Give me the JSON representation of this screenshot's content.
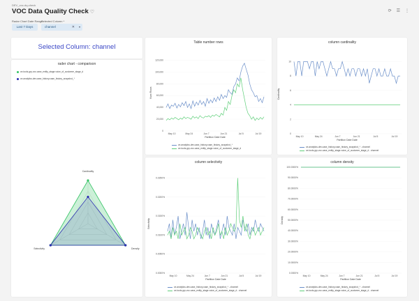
{
  "header": {
    "breadcrumb": "DEV_voc-dq-check",
    "title": "VOC Data Quality Check"
  },
  "filters": {
    "range_label": "Radar Chart Date Range",
    "range_value": "Last 7 Days",
    "column_label": "Selected Column *",
    "column_value": "channel"
  },
  "colors": {
    "blue": "#6b8fc9",
    "green": "#5fcf7a",
    "radar_green": "#35c465",
    "radar_blue": "#2a2bb0"
  },
  "radar": {
    "big_title": "Selected Column: channel",
    "title": "rader chart - comparison",
    "legend": [
      "ce-tools-grp-voc.case_entity_stage.voice_of_customer_stage_d",
      "ce-analytics-dev.case_history.case_history_snapshot_*"
    ],
    "labels": [
      "Cardinality",
      "Selectivity",
      "Density"
    ]
  },
  "chart_data": [
    {
      "type": "line",
      "title": "Table number rows",
      "xlabel": "Partition Date Date",
      "ylabel": "Num Rows",
      "ylim": [
        0,
        130000
      ],
      "yticks": [
        "0",
        "20,000",
        "40,000",
        "60,000",
        "80,000",
        "100,000",
        "120,000"
      ],
      "xticks": [
        "May 10",
        "May 24",
        "Jun 7",
        "Jun 21",
        "Jul 5",
        "Jul 19"
      ],
      "legend": [
        "ce-analytics-dev.case_history.case_history_snapshot_*",
        "ce-tools-grp-voc.case_entity_stage.voice_of_customer_stage_d"
      ],
      "series": [
        {
          "name": "ce-analytics-dev.case_history.case_history_snapshot_*",
          "color": "#6b8fc9",
          "values": [
            40000,
            46000,
            38000,
            44000,
            42000,
            47000,
            39000,
            45000,
            41000,
            48000,
            43000,
            50000,
            40000,
            46000,
            38000,
            51000,
            42000,
            49000,
            44000,
            52000,
            45000,
            50000,
            42000,
            55000,
            47000,
            53000,
            48000,
            56000,
            50000,
            58000,
            52000,
            62000,
            55000,
            60000,
            57000,
            70000,
            65000,
            62000,
            75000,
            80000,
            90000,
            85000,
            100000,
            110000,
            115000,
            105000,
            95000,
            80000,
            70000,
            65000,
            58000,
            60000,
            50000,
            55000,
            48000,
            58000
          ]
        },
        {
          "name": "ce-tools-grp-voc.case_entity_stage.voice_of_customer_stage_d",
          "color": "#5fcf7a",
          "values": [
            18000,
            21000,
            19000,
            22000,
            20000,
            23000,
            21000,
            19000,
            22000,
            20000,
            24000,
            21000,
            23000,
            22000,
            20000,
            25000,
            22000,
            24000,
            21000,
            26000,
            23000,
            22000,
            25000,
            24000,
            26000,
            23000,
            27000,
            25000,
            28000,
            26000,
            24000,
            30000,
            27000,
            40000,
            35000,
            50000,
            45000,
            60000,
            70000,
            65000,
            80000,
            75000,
            90000,
            70000,
            55000,
            40000,
            30000,
            26000,
            20000,
            24000,
            18000,
            22000,
            19000,
            23000,
            20000,
            24000
          ]
        }
      ]
    },
    {
      "type": "line",
      "title": "column cardinality",
      "xlabel": "Partition Date Date",
      "ylabel": "Cardinality",
      "ylim": [
        0,
        11
      ],
      "yticks": [
        "0",
        "2",
        "4",
        "6",
        "8",
        "10"
      ],
      "xticks": [
        "May 10",
        "May 24",
        "Jun 7",
        "Jun 21",
        "Jul 5",
        "Jul 19"
      ],
      "legend": [
        "ce-analytics-dev.case_history.case_history_snapshot_* - channel",
        "ce-tools-grp-voc.case_entity_stage.voice_of_customer_stage_d - channel"
      ],
      "series": [
        {
          "name": "ce-analytics-dev.case_history.case_history_snapshot_* - channel",
          "color": "#6b8fc9",
          "values": [
            10,
            8,
            10,
            10,
            8,
            10,
            10,
            10,
            9,
            10,
            10,
            8,
            10,
            9,
            10,
            10,
            9,
            8,
            9,
            10,
            9,
            9,
            8,
            9,
            9,
            10,
            9,
            8,
            9,
            8,
            9,
            9,
            8,
            9,
            9,
            8,
            9,
            8,
            9,
            7,
            8,
            9,
            9,
            8,
            9,
            8,
            8,
            9,
            8,
            8,
            9,
            8,
            8,
            7,
            8,
            8
          ]
        },
        {
          "name": "ce-tools-grp-voc.case_entity_stage.voice_of_customer_stage_d - channel",
          "color": "#5fcf7a",
          "values": [
            4,
            4
          ]
        }
      ]
    },
    {
      "type": "line",
      "title": "column selectivity",
      "xlabel": "Partition Date Date",
      "ylabel": "Selectivity",
      "ylim": [
        0,
        0.026
      ],
      "yticks": [
        "0.0000%",
        "0.0050%",
        "0.0100%",
        "0.0150%",
        "0.0200%",
        "0.0250%"
      ],
      "xticks": [
        "May 10",
        "May 24",
        "Jun 7",
        "Jun 21",
        "Jul 5",
        "Jul 19"
      ],
      "legend": [
        "ce-analytics-dev.case_history.case_history_snapshot_* - channel",
        "ce-tools-grp-voc.case_entity_stage.voice_of_customer_stage_d - channel"
      ],
      "series": [
        {
          "name": "ce-analytics-dev.case_history.case_history_snapshot_* - channel",
          "color": "#6b8fc9",
          "values": [
            0.011,
            0.013,
            0.009,
            0.014,
            0.01,
            0.012,
            0.015,
            0.009,
            0.011,
            0.013,
            0.01,
            0.016,
            0.012,
            0.009,
            0.014,
            0.011,
            0.013,
            0.01,
            0.012,
            0.009,
            0.011,
            0.014,
            0.01,
            0.012,
            0.009,
            0.013,
            0.011,
            0.01,
            0.012,
            0.014,
            0.009,
            0.011,
            0.013,
            0.01,
            0.015,
            0.012,
            0.011,
            0.01,
            0.013,
            0.009,
            0.012,
            0.011,
            0.01,
            0.014,
            0.012,
            0.011,
            0.013,
            0.01,
            0.012,
            0.011,
            0.014,
            0.012,
            0.011,
            0.013,
            0.012,
            0.011
          ]
        },
        {
          "name": "ce-tools-grp-voc.case_entity_stage.voice_of_customer_stage_d - channel",
          "color": "#5fcf7a",
          "values": [
            0.01,
            0.011,
            0.009,
            0.012,
            0.01,
            0.011,
            0.009,
            0.013,
            0.01,
            0.011,
            0.012,
            0.009,
            0.01,
            0.012,
            0.011,
            0.009,
            0.01,
            0.012,
            0.011,
            0.01,
            0.009,
            0.011,
            0.012,
            0.01,
            0.011,
            0.009,
            0.012,
            0.01,
            0.011,
            0.013,
            0.01,
            0.011,
            0.009,
            0.012,
            0.01,
            0.011,
            0.013,
            0.012,
            0.011,
            0.012,
            0.025,
            0.014,
            0.012,
            0.015,
            0.011,
            0.013,
            0.01,
            0.009,
            0.011,
            0.012,
            0.01,
            0.011,
            0.012,
            0.01,
            0.011,
            0.012
          ]
        }
      ]
    },
    {
      "type": "line",
      "title": "column density",
      "xlabel": "Partition Date Date",
      "ylabel": "Density",
      "ylim": [
        0,
        100
      ],
      "yticks": [
        "0.0000%",
        "10.0000%",
        "20.0000%",
        "30.0000%",
        "40.0000%",
        "50.0000%",
        "60.0000%",
        "70.0000%",
        "80.0000%",
        "90.0000%",
        "100.0000%"
      ],
      "xticks": [
        "May 10",
        "May 24",
        "Jun 7",
        "Jun 21",
        "Jul 5",
        "Jul 19"
      ],
      "legend": [
        "ce-analytics-dev.case_history.case_history_snapshot_* - channel",
        "ce-tools-grp-voc.case_entity_stage.voice_of_customer_stage_d - channel"
      ],
      "series": [
        {
          "name": "ce-analytics-dev.case_history.case_history_snapshot_* - channel",
          "color": "#6b8fc9",
          "values": [
            100,
            100
          ]
        },
        {
          "name": "ce-tools-grp-voc.case_entity_stage.voice_of_customer_stage_d - channel",
          "color": "#5fcf7a",
          "values": [
            100,
            100
          ]
        }
      ]
    }
  ]
}
